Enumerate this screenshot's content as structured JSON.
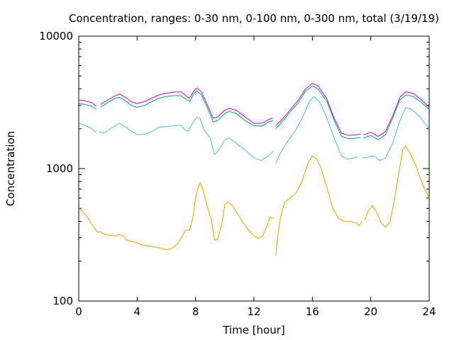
{
  "chart_data": {
    "type": "line",
    "title": "Concentration, ranges: 0-30 nm, 0-100 nm, 0-300 nm, total (3/19/19)",
    "xlabel": "Time [hour]",
    "ylabel": "Concentration",
    "xlim": [
      0,
      24
    ],
    "ylim": [
      100,
      10000
    ],
    "yscale": "log",
    "x_ticks": [
      0,
      4,
      8,
      12,
      16,
      20,
      24
    ],
    "x_tick_labels": [
      "0",
      "4",
      "8",
      "12",
      "16",
      "20",
      "24"
    ],
    "y_ticks": [
      100,
      1000,
      10000
    ],
    "y_tick_labels": [
      "100",
      "1000",
      "10000"
    ],
    "grid": false,
    "legend": "none",
    "series": [
      {
        "color": "#e69f00",
        "points": [
          [
            0,
            500
          ],
          [
            0.3,
            470
          ],
          [
            0.6,
            430
          ],
          [
            0.9,
            380
          ],
          [
            1.2,
            340
          ],
          [
            1.3,
            330
          ],
          [
            1.4,
            335
          ],
          [
            1.8,
            320
          ],
          [
            2.2,
            312
          ],
          [
            2.5,
            310
          ],
          [
            2.7,
            318
          ],
          [
            3.0,
            312
          ],
          [
            3.3,
            288
          ],
          [
            3.6,
            283
          ],
          [
            4.0,
            275
          ],
          [
            4.3,
            265
          ],
          [
            4.6,
            262
          ],
          [
            5.0,
            258
          ],
          [
            5.5,
            252
          ],
          [
            6.0,
            244
          ],
          [
            6.4,
            250
          ],
          [
            6.8,
            272
          ],
          [
            7.1,
            310
          ],
          [
            7.3,
            340
          ],
          [
            7.6,
            345
          ],
          [
            7.8,
            420
          ],
          [
            8.0,
            600
          ],
          [
            8.2,
            730
          ],
          [
            8.3,
            780
          ],
          [
            8.5,
            700
          ],
          [
            8.8,
            520
          ],
          [
            9.1,
            400
          ],
          [
            9.3,
            290
          ],
          [
            9.5,
            290
          ],
          [
            9.8,
            380
          ],
          [
            10.0,
            530
          ],
          [
            10.2,
            560
          ],
          [
            10.5,
            530
          ],
          [
            10.8,
            470
          ],
          [
            11.2,
            400
          ],
          [
            11.6,
            345
          ],
          [
            12.0,
            310
          ],
          [
            12.3,
            298
          ],
          [
            12.6,
            310
          ],
          [
            12.9,
            370
          ],
          [
            13.1,
            430
          ],
          [
            13.3,
            420
          ],
          null,
          [
            13.5,
            220
          ],
          [
            13.6,
            290
          ],
          [
            13.8,
            420
          ],
          [
            14.1,
            560
          ],
          [
            14.5,
            600
          ],
          [
            14.9,
            660
          ],
          [
            15.3,
            800
          ],
          [
            15.7,
            1100
          ],
          [
            16.0,
            1250
          ],
          [
            16.3,
            1180
          ],
          [
            16.6,
            1000
          ],
          [
            17.0,
            720
          ],
          [
            17.4,
            500
          ],
          [
            17.8,
            420
          ],
          [
            18.2,
            400
          ],
          [
            18.6,
            398
          ],
          [
            19.0,
            390
          ],
          [
            19.2,
            370
          ],
          [
            19.4,
            400
          ],
          null,
          [
            19.6,
            410
          ],
          [
            19.8,
            470
          ],
          [
            20.1,
            525
          ],
          [
            20.4,
            470
          ],
          [
            20.7,
            390
          ],
          [
            21.0,
            360
          ],
          [
            21.3,
            390
          ],
          [
            21.6,
            560
          ],
          [
            21.9,
            900
          ],
          [
            22.2,
            1400
          ],
          [
            22.4,
            1480
          ],
          [
            22.7,
            1300
          ],
          [
            23.1,
            1050
          ],
          [
            23.5,
            780
          ],
          [
            24.0,
            600
          ]
        ]
      },
      {
        "color": "#56b4e9",
        "points": [
          [
            0,
            2200
          ],
          [
            0.3,
            2150
          ],
          [
            0.6,
            2080
          ],
          [
            0.9,
            2000
          ],
          [
            1.2,
            1870
          ],
          null,
          [
            1.4,
            1900
          ],
          [
            1.7,
            1850
          ],
          [
            2.1,
            1980
          ],
          [
            2.5,
            2100
          ],
          [
            2.8,
            2200
          ],
          [
            3.1,
            2100
          ],
          [
            3.5,
            1950
          ],
          [
            4.0,
            1800
          ],
          [
            4.5,
            1820
          ],
          [
            5.0,
            1900
          ],
          [
            5.5,
            2050
          ],
          [
            6.0,
            2080
          ],
          [
            6.5,
            2100
          ],
          [
            7.0,
            2130
          ],
          [
            7.3,
            1950
          ],
          [
            7.5,
            1920
          ],
          [
            7.8,
            2200
          ],
          [
            8.1,
            2450
          ],
          [
            8.3,
            2400
          ],
          [
            8.6,
            1950
          ],
          [
            9.0,
            1700
          ],
          [
            9.3,
            1280
          ],
          [
            9.6,
            1380
          ],
          [
            10.0,
            1650
          ],
          [
            10.3,
            1700
          ],
          [
            10.8,
            1550
          ],
          [
            11.4,
            1380
          ],
          [
            12.0,
            1200
          ],
          [
            12.5,
            1150
          ],
          [
            13.0,
            1250
          ],
          [
            13.3,
            1350
          ],
          null,
          [
            13.5,
            1100
          ],
          [
            13.8,
            1300
          ],
          [
            14.3,
            1600
          ],
          [
            14.8,
            1900
          ],
          [
            15.3,
            2400
          ],
          [
            15.8,
            3200
          ],
          [
            16.1,
            3500
          ],
          [
            16.5,
            3200
          ],
          [
            17.0,
            2400
          ],
          [
            17.5,
            1700
          ],
          [
            18.0,
            1250
          ],
          [
            18.4,
            1180
          ],
          [
            18.8,
            1200
          ],
          [
            19.1,
            1230
          ],
          null,
          [
            19.4,
            1200
          ],
          [
            19.8,
            1220
          ],
          [
            20.2,
            1250
          ],
          [
            20.6,
            1150
          ],
          [
            21.0,
            1200
          ],
          [
            21.5,
            1550
          ],
          [
            22.0,
            2300
          ],
          [
            22.4,
            2900
          ],
          [
            22.8,
            2800
          ],
          [
            23.3,
            2500
          ],
          [
            23.7,
            2200
          ],
          [
            24.0,
            2000
          ]
        ]
      },
      {
        "color": "#009e73",
        "points": [
          [
            0,
            3100
          ],
          [
            0.4,
            3050
          ],
          [
            0.9,
            2950
          ],
          [
            1.2,
            2800
          ],
          null,
          [
            1.5,
            2900
          ],
          [
            2.0,
            3150
          ],
          [
            2.5,
            3400
          ],
          [
            2.8,
            3450
          ],
          [
            3.2,
            3250
          ],
          [
            3.6,
            3000
          ],
          [
            4.0,
            2900
          ],
          [
            4.5,
            3000
          ],
          [
            5.0,
            3200
          ],
          [
            5.5,
            3400
          ],
          [
            6.0,
            3500
          ],
          [
            6.5,
            3550
          ],
          [
            7.0,
            3550
          ],
          [
            7.4,
            3300
          ],
          [
            7.6,
            3200
          ],
          [
            7.9,
            3700
          ],
          [
            8.1,
            3850
          ],
          [
            8.4,
            3600
          ],
          [
            8.8,
            2900
          ],
          [
            9.2,
            2250
          ],
          [
            9.5,
            2300
          ],
          [
            10.0,
            2600
          ],
          [
            10.3,
            2700
          ],
          [
            10.8,
            2600
          ],
          [
            11.4,
            2300
          ],
          [
            12.0,
            2100
          ],
          [
            12.6,
            2100
          ],
          [
            13.0,
            2250
          ],
          [
            13.3,
            2300
          ],
          null,
          [
            13.5,
            2000
          ],
          [
            14.0,
            2300
          ],
          [
            14.5,
            2700
          ],
          [
            15.0,
            3100
          ],
          [
            15.5,
            3800
          ],
          [
            16.0,
            4200
          ],
          [
            16.4,
            4000
          ],
          [
            17.0,
            3200
          ],
          [
            17.5,
            2300
          ],
          [
            18.0,
            1750
          ],
          [
            18.5,
            1680
          ],
          [
            19.0,
            1700
          ],
          [
            19.3,
            1720
          ],
          null,
          [
            19.5,
            1700
          ],
          [
            20.0,
            1780
          ],
          [
            20.5,
            1650
          ],
          [
            21.0,
            1800
          ],
          [
            21.5,
            2400
          ],
          [
            22.0,
            3300
          ],
          [
            22.4,
            3600
          ],
          [
            22.9,
            3500
          ],
          [
            23.4,
            3200
          ],
          [
            24.0,
            2800
          ]
        ]
      },
      {
        "color": "#cc00cc",
        "points": [
          [
            0,
            3300
          ],
          [
            0.4,
            3250
          ],
          [
            0.9,
            3150
          ],
          [
            1.2,
            2950
          ],
          null,
          [
            1.5,
            3050
          ],
          [
            2.0,
            3300
          ],
          [
            2.5,
            3550
          ],
          [
            2.8,
            3650
          ],
          [
            3.2,
            3450
          ],
          [
            3.6,
            3200
          ],
          [
            4.0,
            3100
          ],
          [
            4.5,
            3200
          ],
          [
            5.0,
            3400
          ],
          [
            5.5,
            3600
          ],
          [
            6.0,
            3700
          ],
          [
            6.5,
            3780
          ],
          [
            7.0,
            3800
          ],
          [
            7.4,
            3500
          ],
          [
            7.6,
            3400
          ],
          [
            7.9,
            3900
          ],
          [
            8.1,
            4050
          ],
          [
            8.4,
            3800
          ],
          [
            8.8,
            3050
          ],
          [
            9.2,
            2400
          ],
          [
            9.5,
            2450
          ],
          [
            10.0,
            2750
          ],
          [
            10.3,
            2850
          ],
          [
            10.8,
            2750
          ],
          [
            11.4,
            2450
          ],
          [
            12.0,
            2200
          ],
          [
            12.6,
            2200
          ],
          [
            13.0,
            2350
          ],
          [
            13.3,
            2400
          ],
          null,
          [
            13.5,
            2100
          ],
          [
            14.0,
            2400
          ],
          [
            14.5,
            2800
          ],
          [
            15.0,
            3250
          ],
          [
            15.5,
            3950
          ],
          [
            16.0,
            4400
          ],
          [
            16.4,
            4200
          ],
          [
            17.0,
            3350
          ],
          [
            17.5,
            2400
          ],
          [
            18.0,
            1850
          ],
          [
            18.5,
            1780
          ],
          [
            19.0,
            1800
          ],
          [
            19.3,
            1820
          ],
          null,
          [
            19.5,
            1800
          ],
          [
            20.0,
            1880
          ],
          [
            20.5,
            1750
          ],
          [
            21.0,
            1900
          ],
          [
            21.5,
            2500
          ],
          [
            22.0,
            3450
          ],
          [
            22.4,
            3800
          ],
          [
            22.9,
            3700
          ],
          [
            23.4,
            3350
          ],
          [
            24.0,
            2900
          ]
        ]
      }
    ]
  }
}
